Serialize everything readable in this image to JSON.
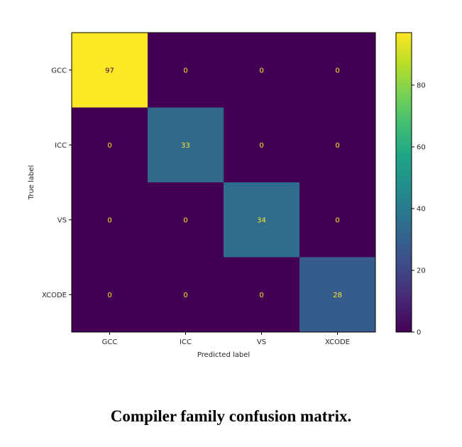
{
  "chart_data": {
    "type": "heatmap",
    "title": "",
    "xlabel": "Predicted label",
    "ylabel": "True label",
    "x_categories": [
      "GCC",
      "ICC",
      "VS",
      "XCODE"
    ],
    "y_categories": [
      "GCC",
      "ICC",
      "VS",
      "XCODE"
    ],
    "matrix": [
      [
        97,
        0,
        0,
        0
      ],
      [
        0,
        33,
        0,
        0
      ],
      [
        0,
        0,
        34,
        0
      ],
      [
        0,
        0,
        0,
        28
      ]
    ],
    "colormap": "viridis",
    "colorbar": {
      "range": [
        0,
        97
      ],
      "ticks": [
        0,
        20,
        40,
        60,
        80
      ]
    },
    "text_colors": {
      "on_dark": "#fde725",
      "on_light": "#440154"
    }
  },
  "caption": "Compiler family confusion matrix."
}
